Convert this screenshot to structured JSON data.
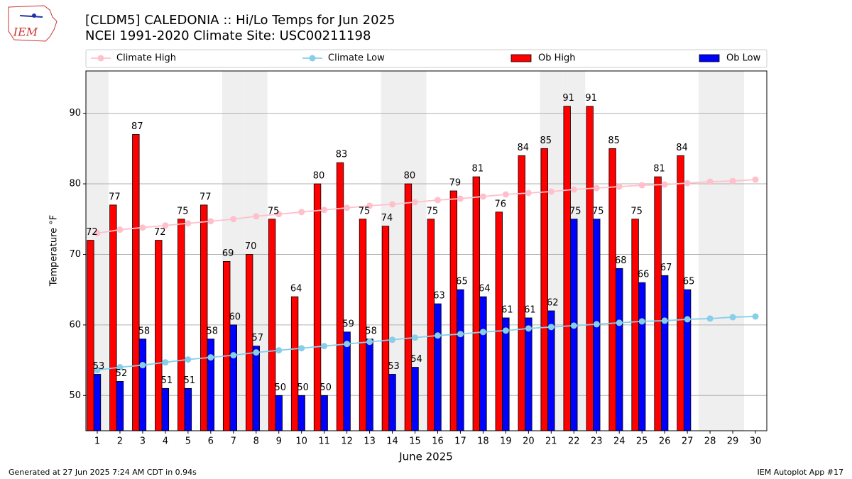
{
  "logo": "IEM",
  "footer": {
    "left": "Generated at 27 Jun 2025 7:24 AM CDT in 0.94s",
    "right": "IEM Autoplot App #17"
  },
  "chart_data": {
    "type": "bar",
    "title": "[CLDM5] CALEDONIA :: Hi/Lo Temps for Jun 2025",
    "subtitle": "NCEI 1991-2020 Climate Site: USC00211198",
    "x_label": "June 2025",
    "y_label": "Temperature °F",
    "x": [
      1,
      2,
      3,
      4,
      5,
      6,
      7,
      8,
      9,
      10,
      11,
      12,
      13,
      14,
      15,
      16,
      17,
      18,
      19,
      20,
      21,
      22,
      23,
      24,
      25,
      26,
      27,
      28,
      29,
      30
    ],
    "xlim": [
      0.5,
      30.5
    ],
    "xticks": [
      1,
      2,
      3,
      4,
      5,
      6,
      7,
      8,
      9,
      10,
      11,
      12,
      13,
      14,
      15,
      16,
      17,
      18,
      19,
      20,
      21,
      22,
      23,
      24,
      25,
      26,
      27,
      28,
      29,
      30
    ],
    "ylim": [
      45,
      96
    ],
    "yticks": [
      50,
      60,
      70,
      80,
      90
    ],
    "grid": true,
    "legend": "top",
    "shaded_days": [
      1,
      7,
      8,
      14,
      15,
      21,
      22,
      28,
      29
    ],
    "shade_color": "#efefef",
    "series": [
      {
        "name": "Climate High",
        "type": "line",
        "color": "#ffc0cb",
        "values": [
          73.0,
          73.5,
          73.8,
          74.1,
          74.4,
          74.7,
          75.0,
          75.4,
          75.7,
          76.0,
          76.3,
          76.6,
          76.9,
          77.1,
          77.4,
          77.7,
          77.9,
          78.2,
          78.5,
          78.7,
          78.9,
          79.2,
          79.4,
          79.6,
          79.8,
          79.9,
          80.1,
          80.3,
          80.4,
          80.6
        ]
      },
      {
        "name": "Climate Low",
        "type": "line",
        "color": "#87ceeb",
        "values": [
          53.6,
          54.0,
          54.3,
          54.7,
          55.1,
          55.4,
          55.7,
          56.1,
          56.4,
          56.7,
          57.0,
          57.3,
          57.6,
          57.9,
          58.2,
          58.5,
          58.7,
          59.0,
          59.2,
          59.5,
          59.7,
          59.9,
          60.1,
          60.3,
          60.5,
          60.6,
          60.8,
          60.9,
          61.1,
          61.2
        ]
      },
      {
        "name": "Ob High",
        "type": "bar",
        "color": "#ff0000",
        "values": [
          72,
          77,
          87,
          72,
          75,
          77,
          69,
          70,
          75,
          64,
          80,
          83,
          75,
          74,
          80,
          75,
          79,
          81,
          76,
          84,
          85,
          91,
          91,
          85,
          75,
          81,
          84,
          null,
          null,
          null
        ]
      },
      {
        "name": "Ob Low",
        "type": "bar",
        "color": "#0000ff",
        "values": [
          53,
          52,
          58,
          51,
          51,
          58,
          60,
          57,
          50,
          50,
          50,
          59,
          58,
          53,
          54,
          63,
          65,
          64,
          61,
          61,
          62,
          75,
          75,
          68,
          66,
          67,
          65,
          null,
          null,
          null
        ]
      }
    ]
  }
}
